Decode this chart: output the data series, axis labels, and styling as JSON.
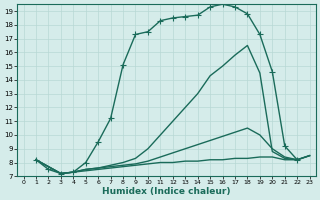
{
  "bg_color": "#d5ecea",
  "line_color": "#1a6b5a",
  "grid_color": "#b8d8d5",
  "xlabel": "Humidex (Indice chaleur)",
  "xlim": [
    -0.5,
    23.5
  ],
  "ylim": [
    7,
    19.5
  ],
  "xticks": [
    0,
    1,
    2,
    3,
    4,
    5,
    6,
    7,
    8,
    9,
    10,
    11,
    12,
    13,
    14,
    15,
    16,
    17,
    18,
    19,
    20,
    21,
    22,
    23
  ],
  "yticks": [
    7,
    8,
    9,
    10,
    11,
    12,
    13,
    14,
    15,
    16,
    17,
    18,
    19
  ],
  "curve1_x": [
    1,
    2,
    3,
    4,
    5,
    6,
    7,
    8,
    9,
    10,
    11,
    12,
    13,
    14,
    15,
    16,
    17,
    18,
    19,
    20,
    21,
    22
  ],
  "curve1_y": [
    8.2,
    7.5,
    7.2,
    7.3,
    8.0,
    9.5,
    11.2,
    15.1,
    17.3,
    17.5,
    18.3,
    18.5,
    18.6,
    18.7,
    19.3,
    19.5,
    19.3,
    18.8,
    17.3,
    14.6,
    9.2,
    8.2
  ],
  "curve1_marker": true,
  "curve2_x": [
    1,
    3,
    4,
    5,
    6,
    7,
    8,
    9,
    10,
    11,
    12,
    13,
    14,
    15,
    16,
    17,
    18,
    19,
    20,
    21,
    22,
    23
  ],
  "curve2_y": [
    8.2,
    7.2,
    7.3,
    7.5,
    7.6,
    7.8,
    8.0,
    8.3,
    9.0,
    10.0,
    11.0,
    12.0,
    13.0,
    14.3,
    15.0,
    15.8,
    16.5,
    14.5,
    8.8,
    8.3,
    8.2,
    8.5
  ],
  "curve2_marker": false,
  "curve3_x": [
    1,
    3,
    4,
    5,
    6,
    7,
    8,
    9,
    10,
    11,
    12,
    13,
    14,
    15,
    16,
    17,
    18,
    19,
    20,
    21,
    22,
    23
  ],
  "curve3_y": [
    8.2,
    7.2,
    7.3,
    7.5,
    7.6,
    7.7,
    7.8,
    7.9,
    8.1,
    8.4,
    8.7,
    9.0,
    9.3,
    9.6,
    9.9,
    10.2,
    10.5,
    10.0,
    9.0,
    8.4,
    8.2,
    8.5
  ],
  "curve3_marker": false,
  "curve4_x": [
    1,
    3,
    4,
    5,
    6,
    7,
    8,
    9,
    10,
    11,
    12,
    13,
    14,
    15,
    16,
    17,
    18,
    19,
    20,
    21,
    22,
    23
  ],
  "curve4_y": [
    8.2,
    7.2,
    7.3,
    7.4,
    7.5,
    7.6,
    7.7,
    7.8,
    7.9,
    8.0,
    8.0,
    8.1,
    8.1,
    8.2,
    8.2,
    8.3,
    8.3,
    8.4,
    8.4,
    8.2,
    8.2,
    8.5
  ],
  "curve4_marker": false,
  "marker_size": 3,
  "line_width": 1.0
}
